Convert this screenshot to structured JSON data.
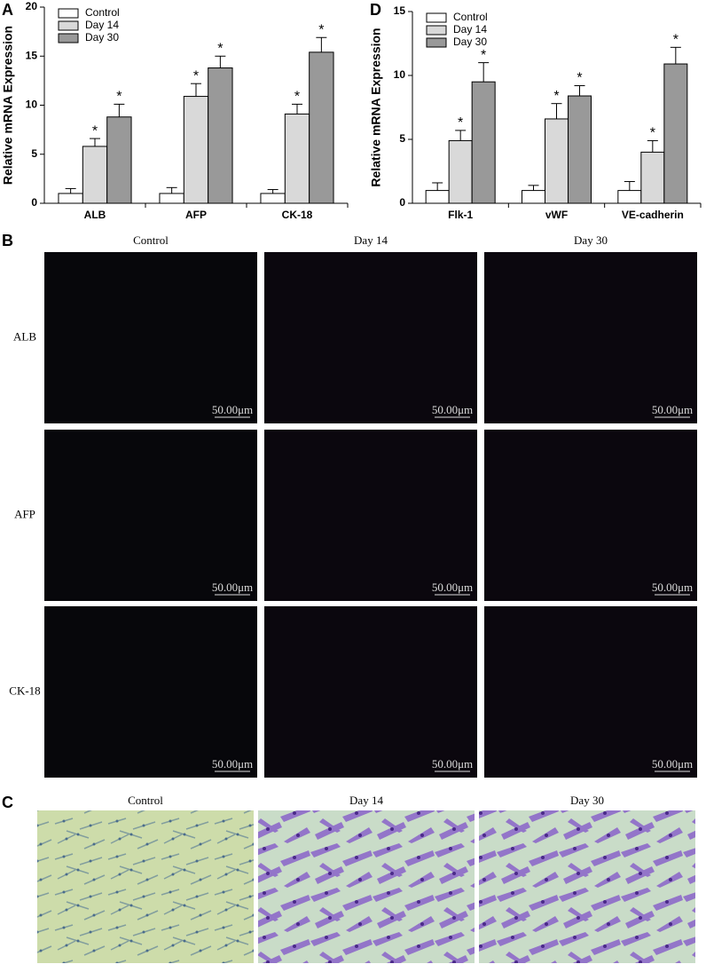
{
  "chart_data": [
    {
      "type": "bar",
      "panel": "A",
      "ylabel": "Relative mRNA Expression",
      "categories": [
        "ALB",
        "AFP",
        "CK-18"
      ],
      "ylim": [
        0,
        20
      ],
      "yticks": [
        0,
        5,
        10,
        15,
        20
      ],
      "legend": "upper left",
      "series": [
        {
          "name": "Control",
          "color": "#ffffff",
          "values": [
            1.0,
            1.0,
            1.0
          ],
          "errors": [
            0.5,
            0.6,
            0.4
          ]
        },
        {
          "name": "Day 14",
          "color": "#d9d9d9",
          "values": [
            5.8,
            10.9,
            9.1
          ],
          "errors": [
            0.8,
            1.3,
            1.0
          ],
          "significance": "*"
        },
        {
          "name": "Day 30",
          "color": "#999999",
          "values": [
            8.8,
            13.8,
            15.4
          ],
          "errors": [
            1.3,
            1.2,
            1.5
          ],
          "significance": "*"
        }
      ]
    },
    {
      "type": "bar",
      "panel": "D",
      "ylabel": "Relative mRNA Expression",
      "categories": [
        "Flk-1",
        "vWF",
        "VE-cadherin"
      ],
      "ylim": [
        0,
        15
      ],
      "yticks": [
        0,
        5,
        10,
        15
      ],
      "legend": "upper left",
      "series": [
        {
          "name": "Control",
          "color": "#ffffff",
          "values": [
            1.0,
            1.0,
            1.0
          ],
          "errors": [
            0.6,
            0.4,
            0.7
          ]
        },
        {
          "name": "Day 14",
          "color": "#d9d9d9",
          "values": [
            4.9,
            6.6,
            4.0
          ],
          "errors": [
            0.8,
            1.2,
            0.9
          ],
          "significance": "*"
        },
        {
          "name": "Day 30",
          "color": "#999999",
          "values": [
            9.5,
            8.4,
            10.9
          ],
          "errors": [
            1.5,
            0.8,
            1.3
          ],
          "significance": "*"
        }
      ]
    }
  ],
  "fluorescence": {
    "panel": "B",
    "columns": [
      "Control",
      "Day 14",
      "Day 30"
    ],
    "rows": [
      "ALB",
      "AFP",
      "CK-18"
    ],
    "scale_bar": "50.00μm"
  },
  "staining": {
    "panel": "C",
    "columns": [
      "Control",
      "Day 14",
      "Day 30"
    ]
  }
}
